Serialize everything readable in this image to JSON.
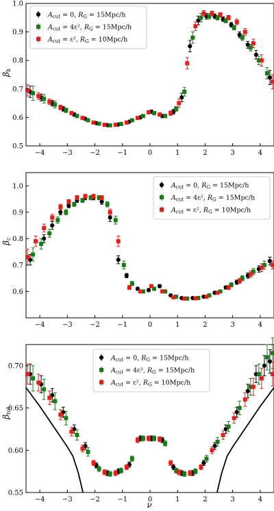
{
  "chart_data": [
    {
      "type": "scatter",
      "title": "",
      "ylabel_main": "β",
      "ylabel_sub": "h",
      "xlabel": "",
      "xlim": [
        -4.5,
        4.5
      ],
      "ylim": [
        0.5,
        1.0
      ],
      "xticks": [
        -4,
        -3,
        -2,
        -1,
        0,
        1,
        2,
        3,
        4
      ],
      "yticks": [
        0.5,
        0.6,
        0.7,
        0.8,
        0.9,
        1.0
      ],
      "ytick_labels": [
        "0.5",
        "0.6",
        "0.7",
        "0.8",
        "0.9",
        "1.0"
      ],
      "legend_position": "top-left",
      "curve": [],
      "series": [
        {
          "label_main": "A",
          "label_cut": "cut",
          "label_eq": " = 0, ",
          "label_r": "R",
          "label_rsub": "G",
          "label_rval": " = 15Mpc/h",
          "color": "#000000",
          "marker": "circle",
          "x": [
            -4.35,
            -3.95,
            -3.55,
            -3.15,
            -2.75,
            -2.35,
            -1.95,
            -1.55,
            -1.15,
            -0.75,
            -0.35,
            0.05,
            0.45,
            0.85,
            1.15,
            1.45,
            1.75,
            2.05,
            2.35,
            2.65,
            2.95,
            3.25,
            3.55,
            3.85,
            4.35
          ],
          "y": [
            0.69,
            0.67,
            0.65,
            0.63,
            0.61,
            0.595,
            0.58,
            0.573,
            0.575,
            0.585,
            0.6,
            0.62,
            0.605,
            0.62,
            0.67,
            0.85,
            0.94,
            0.955,
            0.955,
            0.945,
            0.925,
            0.89,
            0.855,
            0.82,
            0.74
          ],
          "err": [
            0.02,
            0.012,
            0.01,
            0.008,
            0.006,
            0.005,
            0.004,
            0.004,
            0.004,
            0.004,
            0.005,
            0.006,
            0.006,
            0.008,
            0.015,
            0.02,
            0.015,
            0.01,
            0.008,
            0.008,
            0.008,
            0.01,
            0.012,
            0.015,
            0.025
          ]
        },
        {
          "label_main": "A",
          "label_cut": "cut",
          "label_eq": " = 4ε², ",
          "label_r": "R",
          "label_rsub": "G",
          "label_rval": " = 15Mpc/h",
          "color": "#1a7a1a",
          "marker": "square",
          "x": [
            -4.25,
            -3.85,
            -3.45,
            -3.05,
            -2.65,
            -2.25,
            -1.85,
            -1.45,
            -1.05,
            -0.65,
            -0.25,
            0.15,
            0.55,
            0.95,
            1.25,
            1.55,
            1.85,
            2.15,
            2.45,
            2.75,
            3.05,
            3.35,
            3.65,
            3.95,
            4.25
          ],
          "y": [
            0.685,
            0.665,
            0.645,
            0.625,
            0.605,
            0.59,
            0.578,
            0.572,
            0.577,
            0.59,
            0.605,
            0.615,
            0.605,
            0.63,
            0.69,
            0.88,
            0.95,
            0.955,
            0.95,
            0.94,
            0.915,
            0.88,
            0.845,
            0.8,
            0.755
          ],
          "err": [
            0.025,
            0.015,
            0.012,
            0.008,
            0.006,
            0.005,
            0.004,
            0.004,
            0.004,
            0.004,
            0.005,
            0.006,
            0.006,
            0.008,
            0.015,
            0.02,
            0.015,
            0.01,
            0.008,
            0.008,
            0.008,
            0.01,
            0.012,
            0.015,
            0.02
          ]
        },
        {
          "label_main": "A",
          "label_cut": "cut",
          "label_eq": " = ε², ",
          "label_r": "R",
          "label_rsub": "G",
          "label_rval": " = 10Mpc/h",
          "color": "#e0201b",
          "marker": "square",
          "x": [
            -4.45,
            -4.05,
            -3.65,
            -3.25,
            -2.85,
            -2.45,
            -2.05,
            -1.65,
            -1.25,
            -0.85,
            -0.45,
            -0.05,
            0.35,
            0.75,
            1.05,
            1.35,
            1.65,
            1.95,
            2.25,
            2.55,
            2.85,
            3.15,
            3.45,
            3.75,
            4.05,
            4.45
          ],
          "y": [
            0.695,
            0.675,
            0.655,
            0.635,
            0.615,
            0.598,
            0.582,
            0.574,
            0.574,
            0.582,
            0.598,
            0.618,
            0.61,
            0.615,
            0.65,
            0.79,
            0.92,
            0.965,
            0.965,
            0.96,
            0.95,
            0.935,
            0.9,
            0.86,
            0.8,
            0.725
          ],
          "err": [
            0.02,
            0.012,
            0.01,
            0.008,
            0.006,
            0.005,
            0.004,
            0.004,
            0.004,
            0.004,
            0.005,
            0.006,
            0.006,
            0.008,
            0.015,
            0.02,
            0.015,
            0.01,
            0.008,
            0.008,
            0.008,
            0.01,
            0.012,
            0.015,
            0.02,
            0.025
          ]
        }
      ]
    },
    {
      "type": "scatter",
      "title": "",
      "ylabel_main": "β",
      "ylabel_sub": "c",
      "xlabel": "",
      "xlim": [
        -4.5,
        4.5
      ],
      "ylim": [
        0.5,
        1.05
      ],
      "xticks": [
        -4,
        -3,
        -2,
        -1,
        0,
        1,
        2,
        3,
        4
      ],
      "yticks": [
        0.6,
        0.7,
        0.8,
        0.9,
        1.0
      ],
      "ytick_labels": [
        "0.6",
        "0.7",
        "0.8",
        "0.9",
        "1.0"
      ],
      "legend_position": "top-right",
      "curve": [],
      "series": [
        {
          "label_main": "A",
          "label_cut": "cut",
          "label_eq": " = 0, ",
          "label_r": "R",
          "label_rsub": "G",
          "label_rval": " = 15Mpc/h",
          "color": "#000000",
          "marker": "circle",
          "x": [
            -4.35,
            -3.85,
            -3.55,
            -3.25,
            -2.95,
            -2.65,
            -2.35,
            -2.05,
            -1.75,
            -1.45,
            -1.15,
            -0.85,
            -0.45,
            -0.05,
            0.35,
            0.75,
            1.15,
            1.55,
            1.95,
            2.35,
            2.75,
            3.15,
            3.55,
            3.95,
            4.35
          ],
          "y": [
            0.72,
            0.8,
            0.85,
            0.9,
            0.925,
            0.945,
            0.955,
            0.955,
            0.94,
            0.88,
            0.72,
            0.66,
            0.61,
            0.605,
            0.62,
            0.585,
            0.575,
            0.575,
            0.58,
            0.595,
            0.615,
            0.635,
            0.66,
            0.685,
            0.715
          ],
          "err": [
            0.02,
            0.015,
            0.015,
            0.01,
            0.008,
            0.008,
            0.008,
            0.008,
            0.01,
            0.015,
            0.015,
            0.008,
            0.006,
            0.006,
            0.006,
            0.005,
            0.004,
            0.004,
            0.004,
            0.005,
            0.006,
            0.008,
            0.01,
            0.012,
            0.015
          ]
        },
        {
          "label_main": "A",
          "label_cut": "cut",
          "label_eq": " = 4ε², ",
          "label_r": "R",
          "label_rsub": "G",
          "label_rval": " = 15Mpc/h",
          "color": "#1a7a1a",
          "marker": "square",
          "x": [
            -4.25,
            -3.95,
            -3.65,
            -3.35,
            -3.05,
            -2.75,
            -2.45,
            -2.15,
            -1.85,
            -1.55,
            -1.25,
            -0.95,
            -0.65,
            -0.25,
            0.15,
            0.55,
            0.95,
            1.35,
            1.75,
            2.15,
            2.55,
            2.95,
            3.35,
            3.75,
            4.15
          ],
          "y": [
            0.74,
            0.78,
            0.82,
            0.87,
            0.9,
            0.93,
            0.945,
            0.955,
            0.955,
            0.93,
            0.87,
            0.7,
            0.63,
            0.6,
            0.61,
            0.6,
            0.58,
            0.573,
            0.575,
            0.585,
            0.6,
            0.625,
            0.65,
            0.675,
            0.7
          ],
          "err": [
            0.025,
            0.02,
            0.015,
            0.012,
            0.01,
            0.008,
            0.008,
            0.008,
            0.008,
            0.01,
            0.015,
            0.015,
            0.008,
            0.006,
            0.006,
            0.006,
            0.005,
            0.004,
            0.004,
            0.005,
            0.006,
            0.008,
            0.01,
            0.012,
            0.015
          ]
        },
        {
          "label_main": "A",
          "label_cut": "cut",
          "label_eq": " = ε², ",
          "label_r": "R",
          "label_rsub": "G",
          "label_rval": " = 10Mpc/h",
          "color": "#e0201b",
          "marker": "square",
          "x": [
            -4.45,
            -4.15,
            -3.85,
            -3.55,
            -3.25,
            -2.95,
            -2.65,
            -2.35,
            -2.05,
            -1.75,
            -1.45,
            -1.15,
            -0.75,
            -0.35,
            0.05,
            0.45,
            0.85,
            1.25,
            1.65,
            2.05,
            2.45,
            2.85,
            3.25,
            3.65,
            4.05,
            4.45
          ],
          "y": [
            0.73,
            0.79,
            0.84,
            0.88,
            0.92,
            0.94,
            0.955,
            0.96,
            0.96,
            0.955,
            0.9,
            0.79,
            0.615,
            0.6,
            0.62,
            0.6,
            0.578,
            0.573,
            0.574,
            0.58,
            0.595,
            0.615,
            0.64,
            0.665,
            0.69,
            0.7
          ],
          "err": [
            0.03,
            0.02,
            0.015,
            0.012,
            0.01,
            0.008,
            0.008,
            0.008,
            0.008,
            0.008,
            0.012,
            0.02,
            0.008,
            0.006,
            0.006,
            0.006,
            0.005,
            0.004,
            0.004,
            0.005,
            0.006,
            0.008,
            0.01,
            0.012,
            0.015,
            0.015
          ]
        }
      ]
    },
    {
      "type": "scatter",
      "title": "",
      "ylabel_main": "β",
      "ylabel_sub": "tot",
      "xlabel": "ν",
      "xlim": [
        -4.5,
        4.5
      ],
      "ylim": [
        0.55,
        0.725
      ],
      "xticks": [
        -4,
        -3,
        -2,
        -1,
        0,
        1,
        2,
        3,
        4
      ],
      "yticks": [
        0.55,
        0.6,
        0.65,
        0.7
      ],
      "ytick_labels": [
        "0.55",
        "0.60",
        "0.65",
        "0.70"
      ],
      "legend_position": "top-center",
      "curve": [
        [
          -4.5,
          0.674
        ],
        [
          -4.0,
          0.652
        ],
        [
          -3.5,
          0.628
        ],
        [
          -3.0,
          0.604
        ],
        [
          -2.8,
          0.593
        ],
        [
          -2.6,
          0.573
        ],
        [
          -2.45,
          0.552
        ],
        [
          -2.4,
          0.545
        ],
        [
          2.4,
          0.545
        ],
        [
          2.45,
          0.552
        ],
        [
          2.6,
          0.573
        ],
        [
          2.8,
          0.593
        ],
        [
          3.0,
          0.604
        ],
        [
          3.5,
          0.628
        ],
        [
          4.0,
          0.652
        ],
        [
          4.5,
          0.674
        ]
      ],
      "series": [
        {
          "label_main": "A",
          "label_cut": "cut",
          "label_eq": " = 0, ",
          "label_r": "R",
          "label_rsub": "G",
          "label_rval": " = 15Mpc/h",
          "color": "#000000",
          "marker": "circle",
          "x": [
            -4.35,
            -3.95,
            -3.55,
            -3.15,
            -2.75,
            -2.35,
            -1.95,
            -1.55,
            -1.15,
            -0.75,
            -0.35,
            0.05,
            0.45,
            0.85,
            1.15,
            1.55,
            1.95,
            2.35,
            2.75,
            3.15,
            3.55,
            3.85,
            4.15,
            4.35
          ],
          "y": [
            0.69,
            0.678,
            0.665,
            0.645,
            0.625,
            0.605,
            0.582,
            0.573,
            0.575,
            0.583,
            0.614,
            0.614,
            0.612,
            0.58,
            0.573,
            0.573,
            0.585,
            0.605,
            0.625,
            0.645,
            0.67,
            0.69,
            0.7,
            0.705
          ],
          "err": [
            0.012,
            0.01,
            0.008,
            0.006,
            0.005,
            0.004,
            0.003,
            0.003,
            0.003,
            0.003,
            0.003,
            0.003,
            0.003,
            0.003,
            0.003,
            0.003,
            0.003,
            0.004,
            0.005,
            0.006,
            0.008,
            0.01,
            0.012,
            0.014
          ]
        },
        {
          "label_main": "A",
          "label_cut": "cut",
          "label_eq": " = 4ε², ",
          "label_r": "R",
          "label_rsub": "G",
          "label_rval": " = 15Mpc/h",
          "color": "#1a7a1a",
          "marker": "square",
          "x": [
            -4.25,
            -3.85,
            -3.45,
            -3.05,
            -2.65,
            -2.25,
            -1.85,
            -1.45,
            -1.05,
            -0.65,
            -0.25,
            0.15,
            0.55,
            0.95,
            1.25,
            1.65,
            2.05,
            2.45,
            2.85,
            3.25,
            3.65,
            3.95,
            4.25,
            4.45
          ],
          "y": [
            0.685,
            0.672,
            0.658,
            0.638,
            0.618,
            0.598,
            0.578,
            0.572,
            0.576,
            0.59,
            0.614,
            0.614,
            0.608,
            0.576,
            0.572,
            0.575,
            0.59,
            0.61,
            0.628,
            0.65,
            0.675,
            0.69,
            0.71,
            0.715
          ],
          "err": [
            0.015,
            0.012,
            0.01,
            0.008,
            0.006,
            0.005,
            0.003,
            0.003,
            0.003,
            0.003,
            0.003,
            0.003,
            0.003,
            0.003,
            0.003,
            0.003,
            0.004,
            0.005,
            0.006,
            0.008,
            0.01,
            0.012,
            0.015,
            0.018
          ]
        },
        {
          "label_main": "A",
          "label_cut": "cut",
          "label_eq": " = ε², ",
          "label_r": "R",
          "label_rsub": "G",
          "label_rval": " = 10Mpc/h",
          "color": "#e0201b",
          "marker": "square",
          "x": [
            -4.45,
            -4.05,
            -3.65,
            -3.25,
            -2.85,
            -2.45,
            -2.05,
            -1.65,
            -1.25,
            -0.85,
            -0.45,
            -0.05,
            0.35,
            0.75,
            1.05,
            1.45,
            1.85,
            2.25,
            2.65,
            3.05,
            3.45,
            3.75,
            4.05,
            4.45
          ],
          "y": [
            0.69,
            0.68,
            0.662,
            0.642,
            0.622,
            0.602,
            0.585,
            0.574,
            0.573,
            0.58,
            0.612,
            0.614,
            0.613,
            0.585,
            0.574,
            0.573,
            0.58,
            0.6,
            0.618,
            0.638,
            0.66,
            0.675,
            0.685,
            0.69
          ],
          "err": [
            0.012,
            0.01,
            0.008,
            0.006,
            0.005,
            0.004,
            0.003,
            0.003,
            0.003,
            0.003,
            0.003,
            0.003,
            0.003,
            0.003,
            0.003,
            0.003,
            0.003,
            0.004,
            0.005,
            0.006,
            0.008,
            0.01,
            0.012,
            0.014
          ]
        }
      ]
    }
  ]
}
